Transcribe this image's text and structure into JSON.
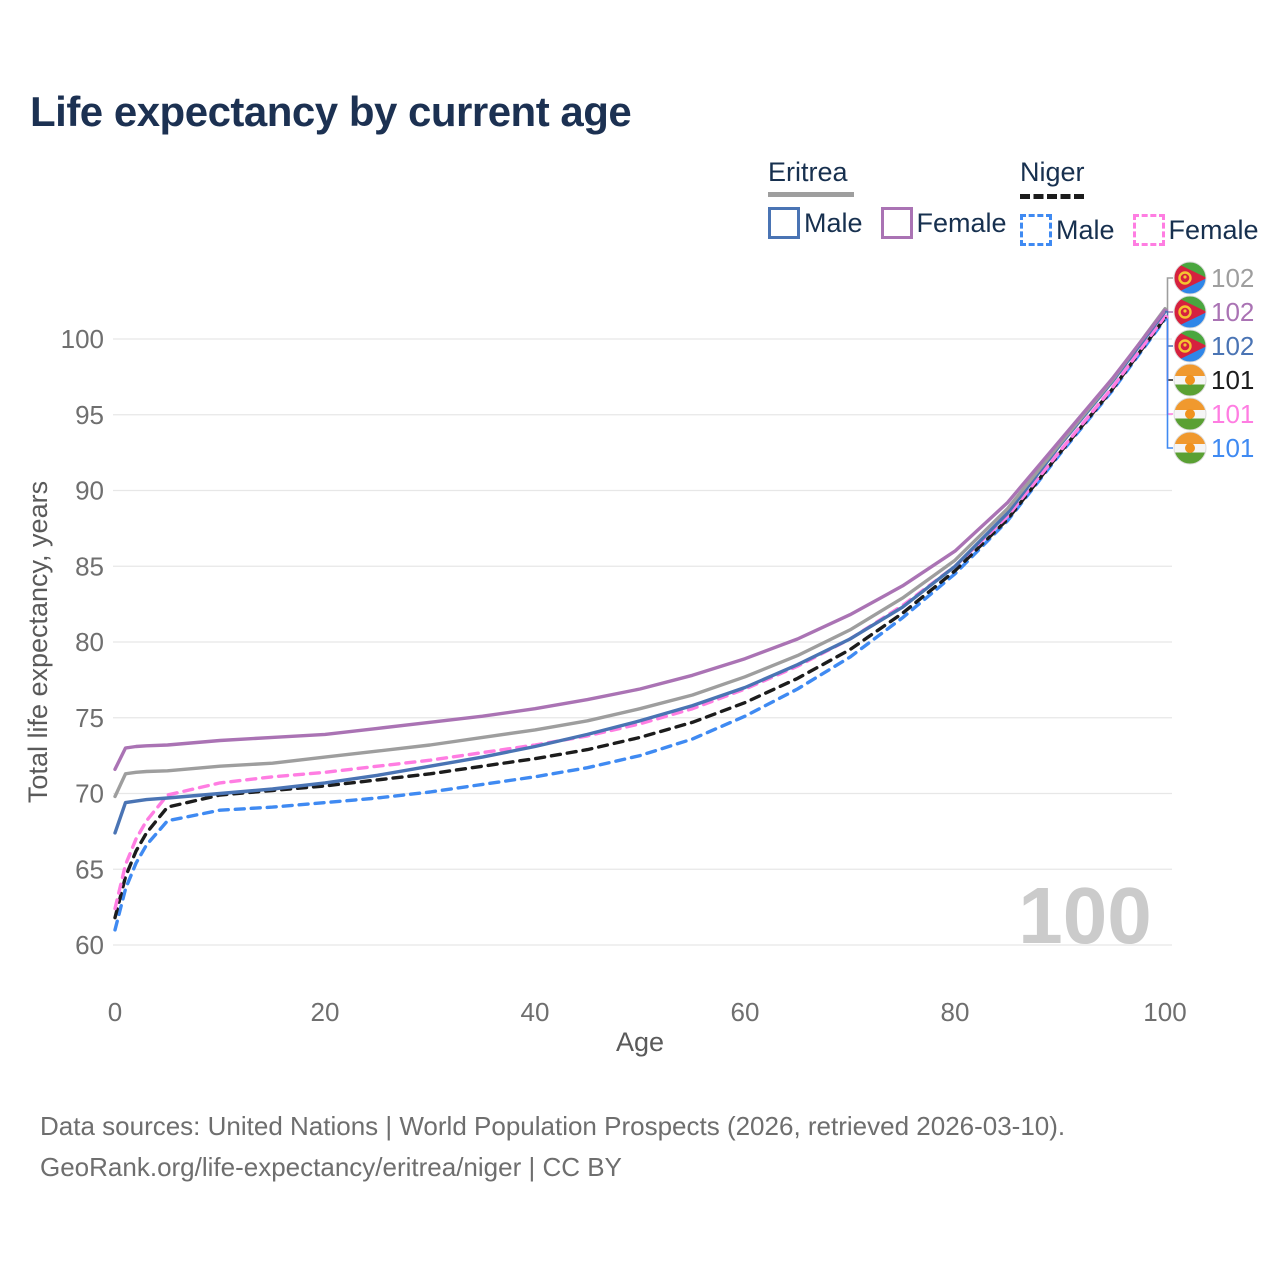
{
  "title": "Life expectancy by current age",
  "legend": {
    "eritrea": {
      "label": "Eritrea",
      "male": "Male",
      "female": "Female"
    },
    "niger": {
      "label": "Niger",
      "male": "Male",
      "female": "Female"
    },
    "swatches": {
      "eritrea_male": "#4a74b4",
      "eritrea_female": "#aa73b4",
      "niger_male": "#3f8af2",
      "niger_female": "#ff7de2"
    },
    "underline_colors": {
      "eritrea": "#9e9e9e",
      "niger": "#1c1c1c"
    }
  },
  "watermark_age": "100",
  "footer": {
    "line1": "Data sources: United Nations | World Population Prospects (2026, retrieved 2026-03-10).",
    "line2": "GeoRank.org/life-expectancy/eritrea/niger | CC BY"
  },
  "colors": {
    "title_text": "#1c3152",
    "legend_text": "#17304f",
    "grid": "#e7e7e7",
    "tick_text": "#6f6f6f",
    "axis_title_text": "#5a5a5a",
    "watermark": "#cbcbcb",
    "flag_ring": "#dcdcdc"
  },
  "chart_data": {
    "type": "line",
    "title": "Life expectancy by current age",
    "xlabel": "Age",
    "ylabel": "Total life expectancy, years",
    "x_ticks": [
      0,
      20,
      40,
      60,
      80,
      100
    ],
    "y_ticks": [
      60,
      65,
      70,
      75,
      80,
      85,
      90,
      95,
      100
    ],
    "xlim": [
      0,
      100
    ],
    "ylim": [
      58.5,
      103.5
    ],
    "grid": "horizontal-only",
    "legend_position": "top-right",
    "x": [
      0,
      1,
      2,
      3,
      5,
      10,
      15,
      20,
      25,
      30,
      35,
      40,
      45,
      50,
      55,
      60,
      65,
      70,
      75,
      80,
      85,
      90,
      95,
      100
    ],
    "series": [
      {
        "name": "Eritrea",
        "country": "Eritrea",
        "sex": "Both",
        "style": "solid",
        "color": "#9e9e9e",
        "values": [
          69.8,
          71.3,
          71.4,
          71.45,
          71.5,
          71.8,
          72.0,
          72.4,
          72.8,
          73.2,
          73.7,
          74.2,
          74.8,
          75.6,
          76.5,
          77.7,
          79.1,
          80.8,
          82.9,
          85.4,
          88.8,
          93.1,
          97.3,
          102.0
        ]
      },
      {
        "name": "Eritrea Female",
        "country": "Eritrea",
        "sex": "Female",
        "style": "solid",
        "color": "#aa73b4",
        "values": [
          71.6,
          73.0,
          73.1,
          73.15,
          73.2,
          73.5,
          73.7,
          73.9,
          74.3,
          74.7,
          75.1,
          75.6,
          76.2,
          76.9,
          77.8,
          78.9,
          80.2,
          81.8,
          83.7,
          86.0,
          89.2,
          93.3,
          97.4,
          101.9
        ]
      },
      {
        "name": "Eritrea Male",
        "country": "Eritrea",
        "sex": "Male",
        "style": "solid",
        "color": "#4a74b4",
        "values": [
          67.4,
          69.4,
          69.5,
          69.6,
          69.7,
          70.0,
          70.3,
          70.7,
          71.2,
          71.8,
          72.4,
          73.1,
          73.9,
          74.8,
          75.8,
          77.0,
          78.5,
          80.2,
          82.3,
          85.0,
          88.5,
          93.0,
          97.2,
          101.8
        ]
      },
      {
        "name": "Niger",
        "country": "Niger",
        "sex": "Both",
        "style": "dashed",
        "color": "#1c1c1c",
        "values": [
          61.8,
          64.5,
          66.2,
          67.4,
          69.1,
          69.9,
          70.2,
          70.5,
          70.9,
          71.3,
          71.8,
          72.3,
          72.9,
          73.7,
          74.7,
          76.0,
          77.6,
          79.5,
          81.9,
          84.7,
          88.1,
          92.5,
          96.7,
          101.4
        ]
      },
      {
        "name": "Niger Female",
        "country": "Niger",
        "sex": "Female",
        "style": "dashed",
        "color": "#ff7de2",
        "values": [
          62.4,
          65.3,
          67.0,
          68.2,
          69.9,
          70.7,
          71.1,
          71.4,
          71.8,
          72.2,
          72.7,
          73.2,
          73.8,
          74.6,
          75.6,
          76.9,
          78.4,
          80.2,
          82.4,
          85.0,
          88.3,
          92.6,
          96.8,
          101.5
        ]
      },
      {
        "name": "Niger Male",
        "country": "Niger",
        "sex": "Male",
        "style": "dashed",
        "color": "#3f8af2",
        "values": [
          61.0,
          63.7,
          65.4,
          66.6,
          68.2,
          68.9,
          69.1,
          69.4,
          69.7,
          70.1,
          70.6,
          71.1,
          71.7,
          72.5,
          73.6,
          75.1,
          76.9,
          79.0,
          81.6,
          84.5,
          88.0,
          92.4,
          96.6,
          101.3
        ]
      }
    ],
    "end_rows": [
      {
        "series": 0,
        "flag": "eritrea",
        "value": "102"
      },
      {
        "series": 1,
        "flag": "eritrea",
        "value": "102"
      },
      {
        "series": 2,
        "flag": "eritrea",
        "value": "102"
      },
      {
        "series": 3,
        "flag": "niger",
        "value": "101"
      },
      {
        "series": 4,
        "flag": "niger",
        "value": "101"
      },
      {
        "series": 5,
        "flag": "niger",
        "value": "101"
      }
    ]
  }
}
